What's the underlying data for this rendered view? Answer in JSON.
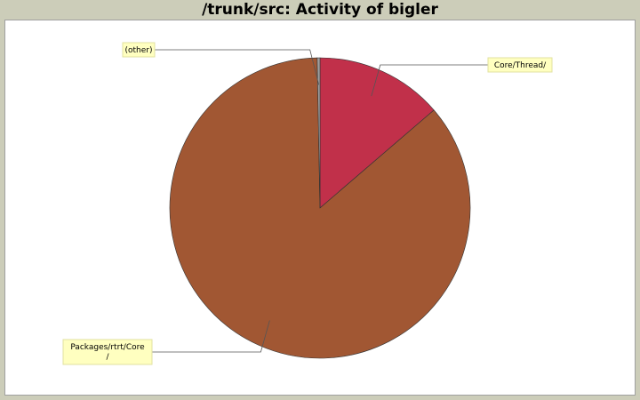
{
  "chart_data": {
    "type": "pie",
    "title": "/trunk/src: Activity of bigler",
    "slices": [
      {
        "label": "Core/Thread/",
        "label_lines": [
          "Core/Thread/"
        ],
        "value": 13.7,
        "color": "#c1304a"
      },
      {
        "label": "Packages/rtrt/Core/",
        "label_lines": [
          "Packages/rtrt/Core",
          "/"
        ],
        "value": 86.0,
        "color": "#a15733"
      },
      {
        "label": "(other)",
        "label_lines": [
          "(other)"
        ],
        "value": 0.3,
        "color": "#a0a0a0"
      }
    ],
    "start_angle_deg": 0,
    "direction": "clockwise",
    "legend": "none",
    "label_style": "callout"
  },
  "colors": {
    "background": "#cccdb9",
    "plot_background": "#ffffff",
    "label_box": "#ffffc0",
    "label_border": "#e0e0a0"
  }
}
